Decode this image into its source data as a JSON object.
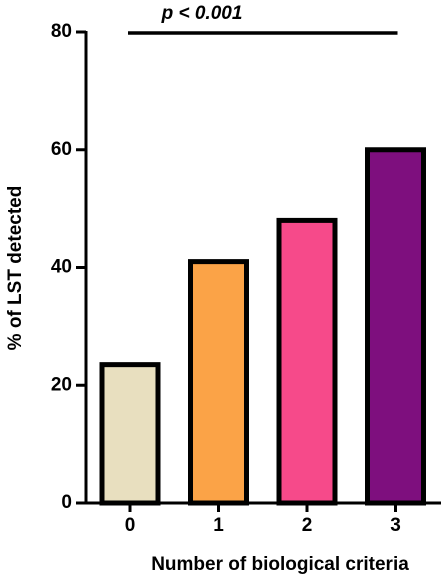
{
  "chart_data": {
    "type": "bar",
    "annotation": "p < 0.001",
    "x_label": "Number of biological criteria",
    "y_label": "% of LST detected",
    "categories": [
      "0",
      "1",
      "2",
      "3"
    ],
    "values": [
      23.5,
      41,
      48,
      60
    ],
    "colors": [
      "#e8dfbf",
      "#fba347",
      "#f64a8a",
      "#7e0f7e"
    ],
    "ylim": [
      0,
      80
    ],
    "yticks": [
      0,
      20,
      40,
      60,
      80
    ],
    "grid": false
  }
}
